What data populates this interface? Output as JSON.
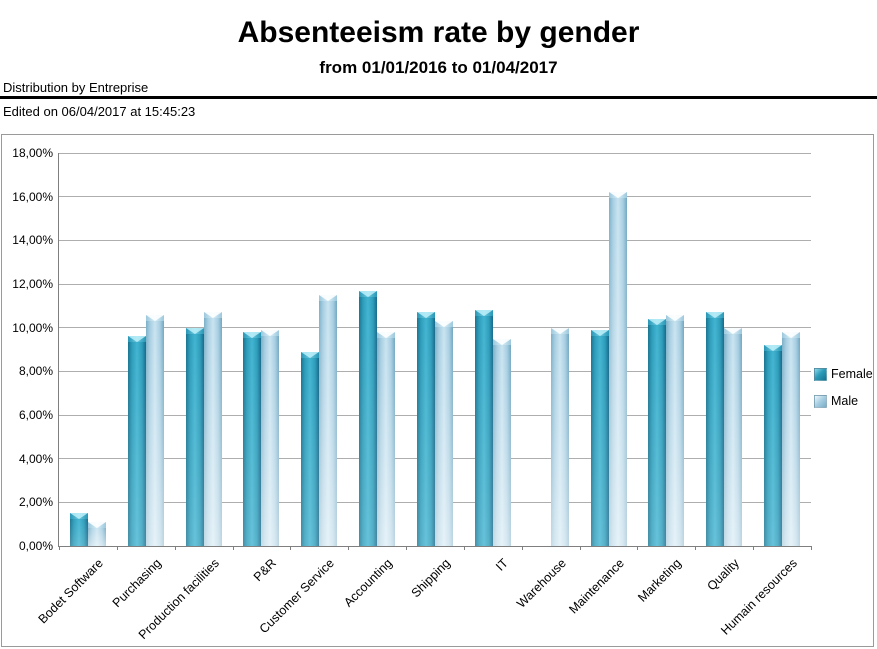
{
  "header": {
    "title": "Absenteeism rate by gender",
    "subtitle": "from 01/01/2016 to 01/04/2017",
    "distribution_label": "Distribution by Entreprise",
    "edited_label": "Edited on 06/04/2017 at 15:45:23"
  },
  "chart_data": {
    "type": "bar",
    "title": "Absenteeism rate by gender",
    "subtitle": "from 01/01/2016 to 01/04/2017",
    "categories": [
      "Bodet Software",
      "Purchasing",
      "Production facilities",
      "P&R",
      "Customer Service",
      "Accounting",
      "Shipping",
      "IT",
      "Warehouse",
      "Maintenance",
      "Marketing",
      "Quality",
      "Humain resources"
    ],
    "series": [
      {
        "name": "Female",
        "color": "#2b9cba",
        "values": [
          1.5,
          9.6,
          10.0,
          9.8,
          8.9,
          11.7,
          10.7,
          10.8,
          null,
          9.9,
          10.4,
          10.7,
          9.2
        ]
      },
      {
        "name": "Male",
        "color": "#a5cde1",
        "values": [
          1.1,
          10.6,
          10.7,
          9.9,
          11.5,
          9.8,
          10.3,
          9.5,
          10.0,
          16.2,
          10.6,
          10.0,
          9.8
        ]
      }
    ],
    "ylabel": "",
    "xlabel": "",
    "ylim": [
      0,
      18
    ],
    "y_tick_step": 2,
    "y_tick_labels": [
      "0,00%",
      "2,00%",
      "4,00%",
      "6,00%",
      "8,00%",
      "10,00%",
      "12,00%",
      "14,00%",
      "16,00%",
      "18,00%"
    ],
    "grid": true,
    "legend_position": "right",
    "value_unit": "percent"
  },
  "colors": {
    "gridline": "#aeaeae",
    "axis": "#7f7f7f",
    "female_dark": "#17738f",
    "female_light": "#41b4d1",
    "male_dark": "#79aec6",
    "male_light": "#c8e3f0",
    "divider": "#000000",
    "frame": "#9a9a9a"
  }
}
